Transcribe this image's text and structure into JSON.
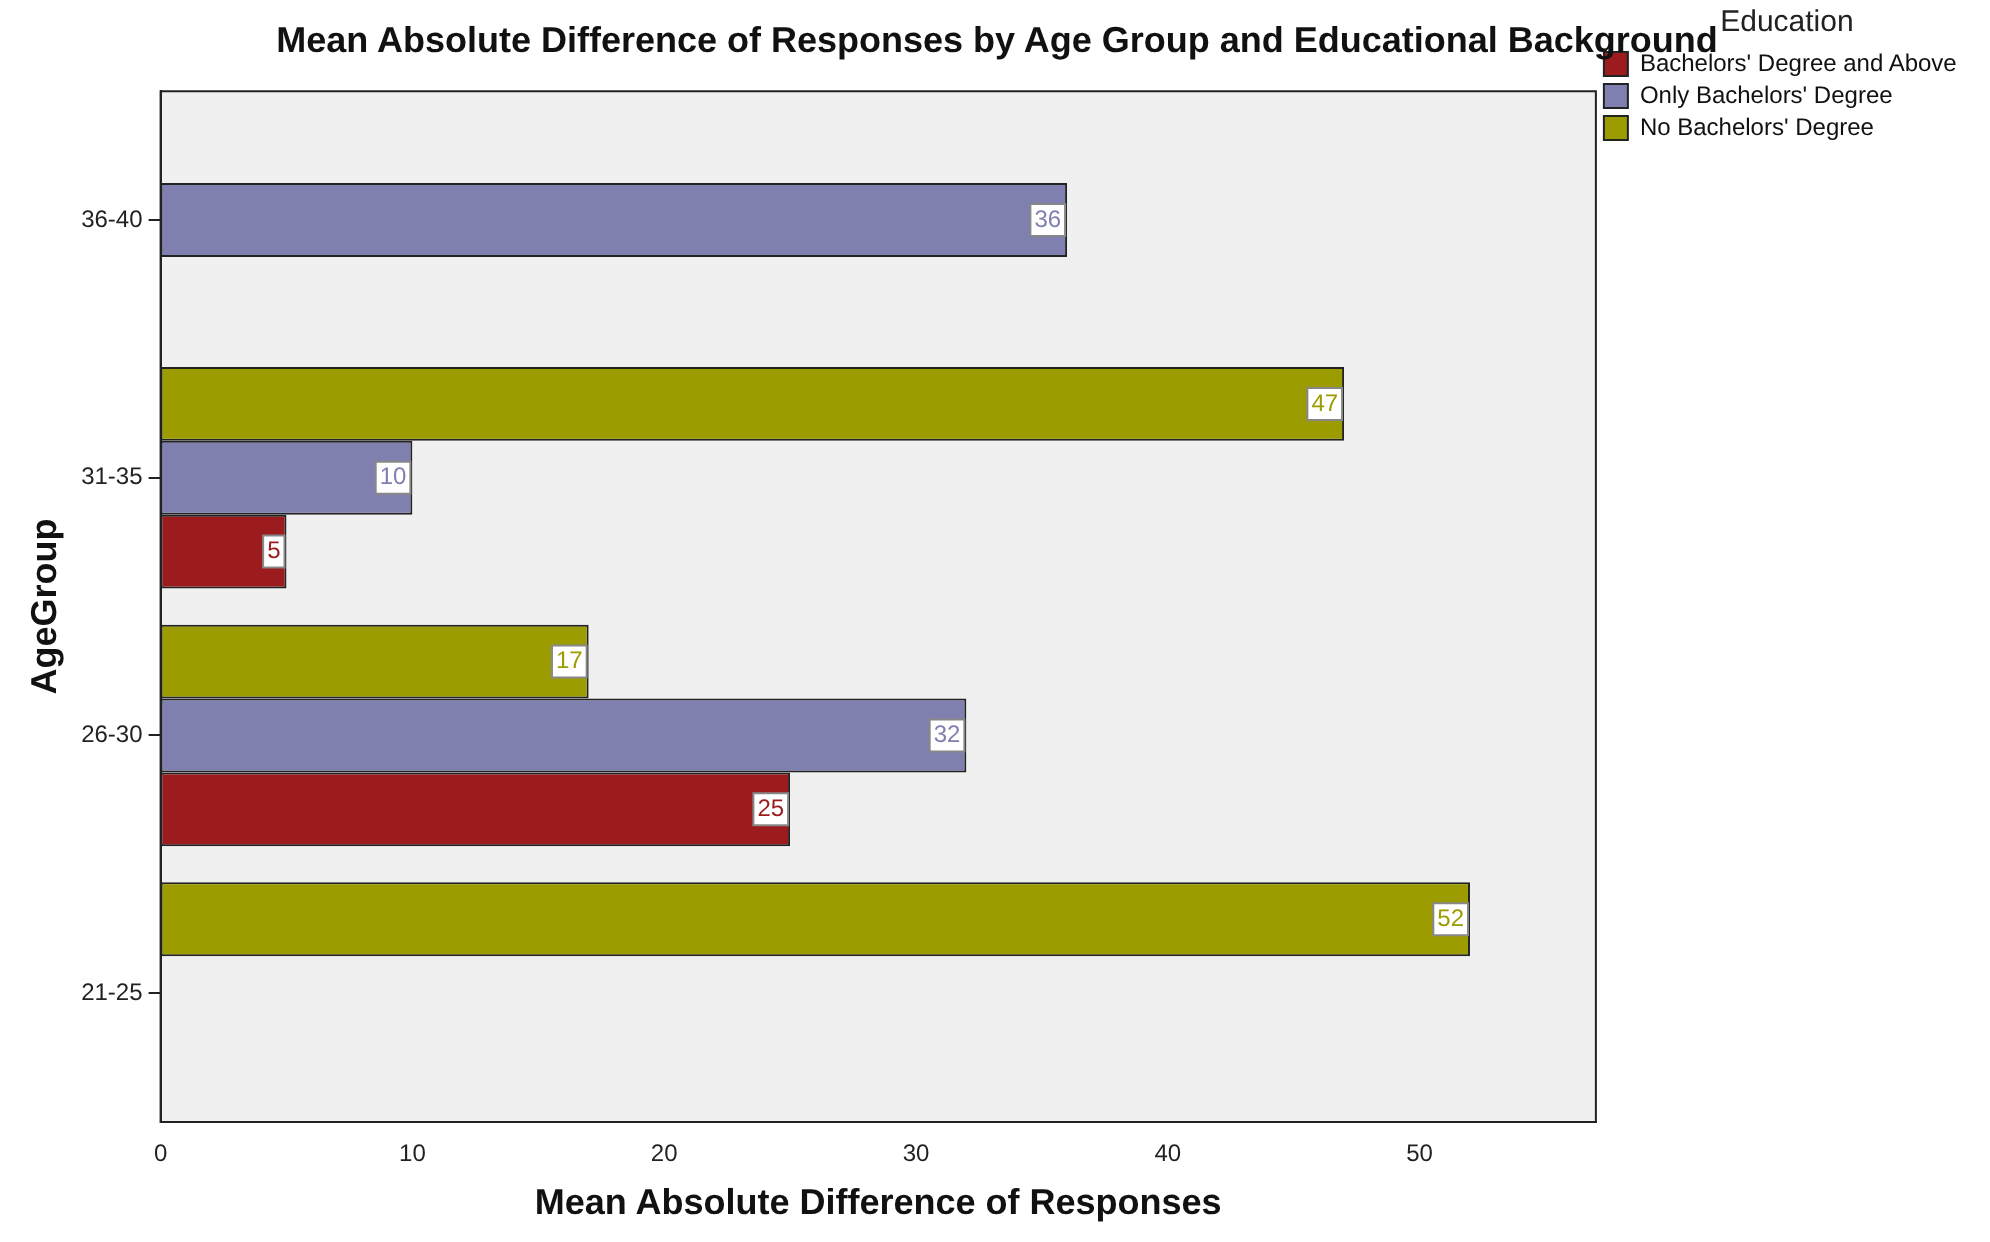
{
  "chart_data": {
    "type": "bar",
    "orientation": "horizontal",
    "title": "Mean Absolute Difference of Responses by Age Group and Educational Background",
    "xlabel": "Mean Absolute Difference of Responses",
    "ylabel": "AgeGroup",
    "legend_title": "Education",
    "categories": [
      "36-40",
      "31-35",
      "26-30",
      "21-25"
    ],
    "series": [
      {
        "name": "Bachelors' Degree and Above",
        "color": "#9b1b1f",
        "values": [
          null,
          5,
          25,
          null
        ]
      },
      {
        "name": "Only Bachelors' Degree",
        "color": "#7f7fb0",
        "values": [
          36,
          10,
          32,
          null
        ]
      },
      {
        "name": "No Bachelors' Degree",
        "color": "#9c9c00",
        "values": [
          null,
          47,
          17,
          52
        ]
      }
    ],
    "xlim": [
      0,
      57
    ],
    "xticks": [
      0,
      10,
      20,
      30,
      40,
      50
    ],
    "grid": false,
    "legend": "top right",
    "data_labels": true
  }
}
